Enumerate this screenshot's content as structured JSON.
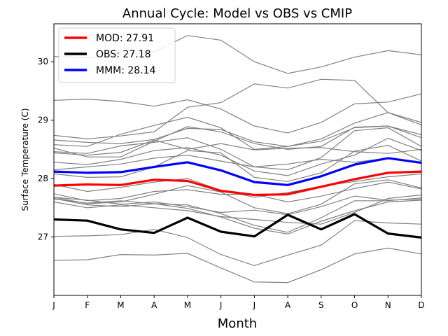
{
  "chart_data": {
    "type": "line",
    "title": "Annual Cycle: Model vs OBS vs CMIP",
    "xlabel": "Month",
    "ylabel": "Surface Temperature (C)",
    "categories": [
      "J",
      "F",
      "M",
      "A",
      "M",
      "J",
      "J",
      "A",
      "S",
      "O",
      "N",
      "D"
    ],
    "ylim": [
      26.0,
      30.65
    ],
    "yticks": [
      27,
      28,
      29,
      30
    ],
    "legend_position": "top-left",
    "series": [
      {
        "name": "MOD",
        "legend": "MOD: 27.91",
        "color": "#ff0000",
        "values": [
          27.88,
          27.9,
          27.89,
          27.98,
          27.96,
          27.79,
          27.72,
          27.73,
          27.86,
          27.99,
          28.1,
          28.12
        ]
      },
      {
        "name": "OBS",
        "legend": "OBS: 27.18",
        "color": "#000000",
        "values": [
          27.3,
          27.28,
          27.13,
          27.07,
          27.33,
          27.09,
          27.01,
          27.38,
          27.13,
          27.39,
          27.06,
          26.99
        ]
      },
      {
        "name": "MMM",
        "legend": "MMM: 28.14",
        "color": "#0000ff",
        "values": [
          28.12,
          28.1,
          28.11,
          28.2,
          28.28,
          28.14,
          27.94,
          27.89,
          28.04,
          28.24,
          28.35,
          28.27
        ]
      }
    ],
    "cmip_members": [
      [
        30.09,
        30.07,
        30.12,
        30.17,
        30.45,
        30.37,
        30.0,
        29.8,
        29.91,
        30.08,
        30.19,
        30.12
      ],
      [
        29.34,
        29.36,
        29.32,
        29.24,
        29.35,
        29.19,
        28.9,
        28.78,
        28.96,
        29.28,
        29.31,
        29.45
      ],
      [
        28.74,
        28.68,
        28.73,
        28.8,
        29.22,
        29.3,
        29.62,
        29.55,
        29.7,
        29.68,
        29.13,
        28.92
      ],
      [
        28.66,
        28.62,
        28.6,
        28.67,
        28.86,
        28.84,
        28.63,
        28.55,
        28.68,
        28.95,
        29.13,
        28.96
      ],
      [
        28.58,
        28.55,
        28.76,
        28.91,
        29.05,
        28.87,
        28.5,
        28.55,
        28.64,
        28.87,
        28.9,
        28.75
      ],
      [
        28.52,
        28.37,
        28.37,
        28.64,
        28.89,
        28.8,
        28.6,
        28.5,
        28.55,
        28.88,
        28.9,
        28.7
      ],
      [
        28.44,
        28.4,
        28.45,
        28.66,
        28.5,
        28.6,
        28.49,
        28.52,
        28.53,
        28.46,
        28.43,
        28.5
      ],
      [
        28.46,
        28.43,
        28.56,
        28.62,
        28.7,
        28.5,
        28.2,
        28.15,
        28.36,
        28.82,
        28.87,
        28.55
      ],
      [
        28.28,
        28.24,
        28.33,
        28.48,
        28.53,
        28.4,
        28.13,
        28.05,
        28.25,
        28.4,
        28.69,
        28.48
      ],
      [
        28.15,
        28.2,
        28.25,
        28.35,
        28.4,
        28.3,
        28.2,
        28.25,
        28.33,
        28.28,
        28.35,
        28.27
      ],
      [
        28.08,
        28.02,
        28.03,
        28.2,
        28.48,
        28.44,
        28.02,
        27.95,
        28.1,
        28.47,
        28.57,
        28.3
      ],
      [
        27.9,
        27.78,
        27.85,
        27.94,
        28.0,
        27.8,
        27.68,
        27.76,
        27.87,
        27.95,
        28.03,
        28.08
      ],
      [
        27.74,
        27.62,
        27.66,
        27.78,
        27.81,
        27.73,
        27.73,
        27.6,
        27.7,
        27.83,
        27.94,
        27.82
      ],
      [
        27.68,
        27.57,
        27.6,
        27.73,
        27.88,
        27.77,
        27.5,
        27.4,
        27.56,
        27.91,
        27.98,
        27.84
      ],
      [
        27.68,
        27.63,
        27.56,
        27.6,
        27.52,
        27.42,
        27.46,
        27.38,
        27.52,
        27.7,
        27.63,
        27.65
      ],
      [
        27.65,
        27.58,
        27.62,
        27.57,
        27.55,
        27.4,
        27.2,
        27.08,
        27.33,
        27.62,
        27.62,
        27.67
      ],
      [
        27.66,
        27.55,
        27.52,
        27.57,
        27.49,
        27.34,
        27.15,
        27.05,
        27.27,
        27.45,
        27.6,
        27.63
      ],
      [
        27.6,
        27.5,
        27.55,
        27.5,
        27.45,
        27.35,
        27.3,
        27.25,
        27.22,
        27.42,
        27.66,
        27.72
      ],
      [
        27.01,
        27.02,
        27.04,
        27.13,
        26.99,
        26.7,
        26.51,
        26.69,
        26.86,
        27.28,
        27.24,
        27.22
      ],
      [
        26.6,
        26.61,
        26.7,
        26.69,
        26.72,
        26.47,
        26.23,
        26.22,
        26.44,
        26.71,
        26.81,
        26.71
      ]
    ],
    "cmip_color": "#808080"
  }
}
